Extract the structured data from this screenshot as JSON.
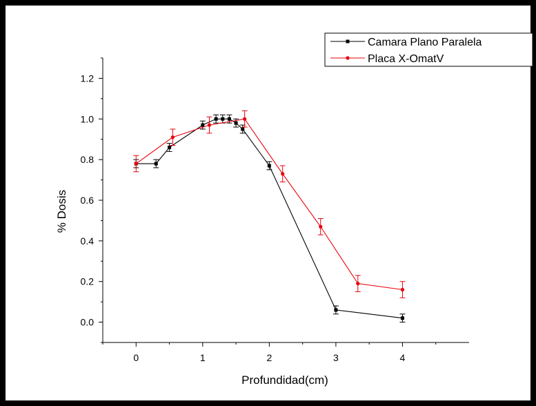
{
  "chart_data": {
    "type": "line",
    "title": "",
    "xlabel": "Profundidad(cm)",
    "ylabel": "% Dosis",
    "xlim": [
      -0.5,
      5.0
    ],
    "ylim": [
      -0.1,
      1.3
    ],
    "xticks": [
      0,
      1,
      2,
      3,
      4
    ],
    "xtick_labels": [
      "0",
      "1",
      "2",
      "3",
      "4"
    ],
    "yticks": [
      0.0,
      0.2,
      0.4,
      0.6,
      0.8,
      1.0,
      1.2
    ],
    "ytick_labels": [
      "0.0",
      "0.2",
      "0.4",
      "0.6",
      "0.8",
      "1.0",
      "1.2"
    ],
    "grid": false,
    "legend_position": "top-right",
    "series": [
      {
        "name": "Camara Plano Paralela",
        "color": "#000000",
        "marker": "square",
        "x": [
          0,
          0.3,
          0.5,
          1.0,
          1.2,
          1.3,
          1.4,
          1.5,
          1.6,
          2.0,
          3.0,
          4.0
        ],
        "y": [
          0.78,
          0.78,
          0.86,
          0.97,
          1.0,
          1.0,
          1.0,
          0.98,
          0.95,
          0.77,
          0.06,
          0.02
        ],
        "error": [
          0.02,
          0.02,
          0.02,
          0.02,
          0.02,
          0.02,
          0.02,
          0.02,
          0.02,
          0.02,
          0.02,
          0.02
        ]
      },
      {
        "name": "Placa X-OmatV",
        "color": "#e8000b",
        "marker": "circle",
        "x": [
          0,
          0.55,
          1.1,
          1.63,
          2.2,
          2.77,
          3.33,
          4.0
        ],
        "y": [
          0.78,
          0.91,
          0.97,
          1.0,
          0.73,
          0.47,
          0.19,
          0.16
        ],
        "error": [
          0.04,
          0.04,
          0.04,
          0.04,
          0.04,
          0.04,
          0.04,
          0.04
        ]
      }
    ]
  }
}
